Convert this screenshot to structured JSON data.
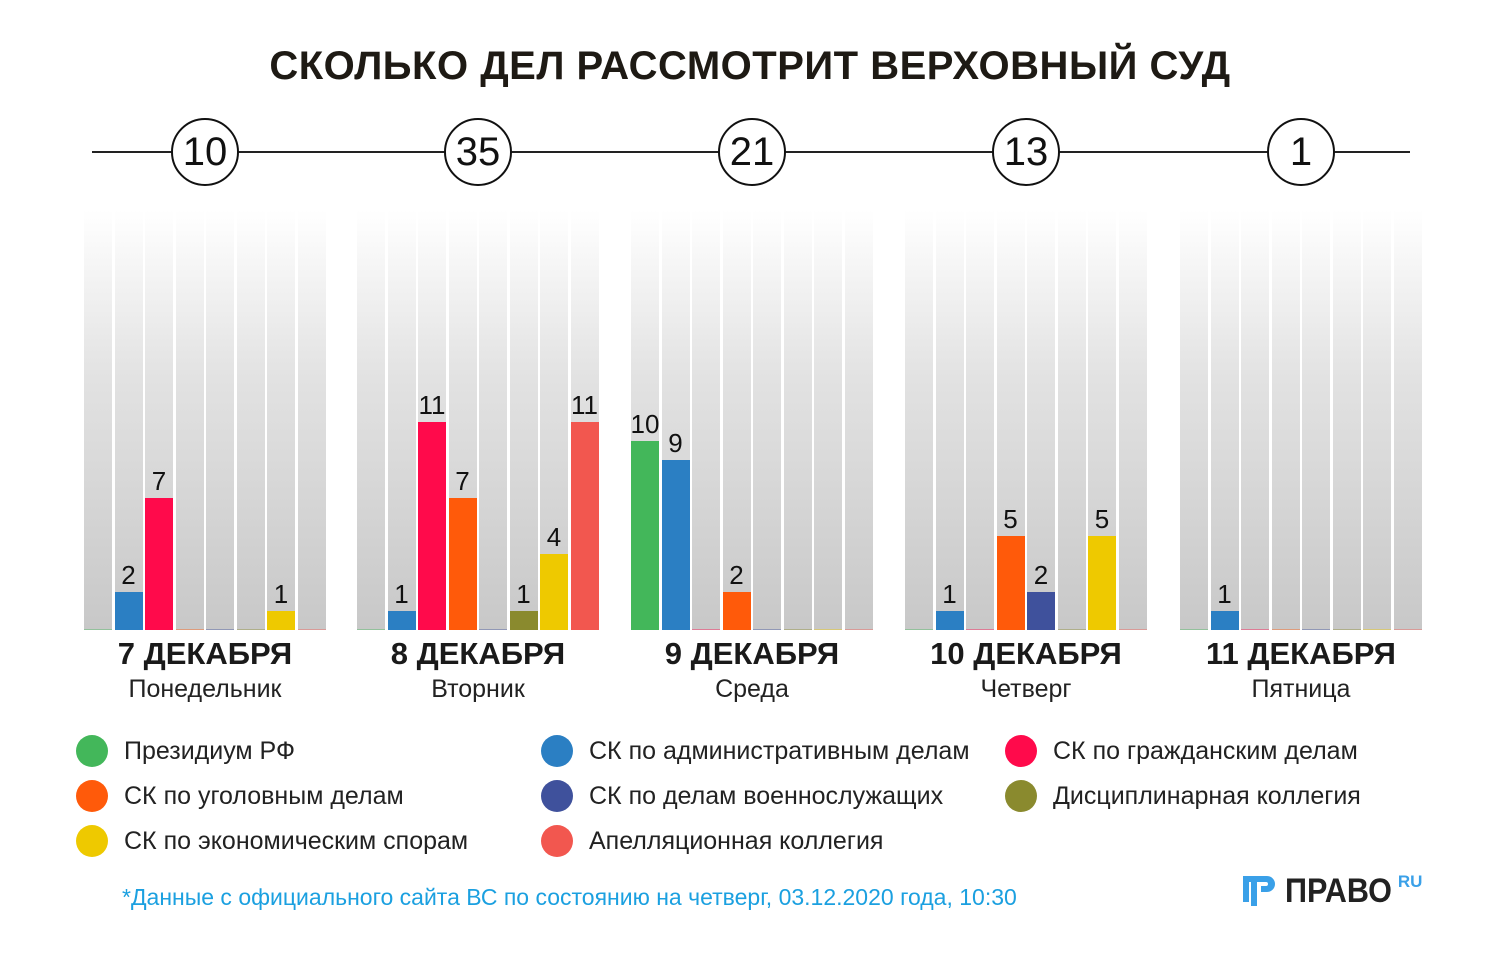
{
  "title": "СКОЛЬКО ДЕЛ РАССМОТРИТ ВЕРХОВНЫЙ СУД",
  "chart_data": {
    "type": "bar",
    "title": "СКОЛЬКО ДЕЛ РАССМОТРИТ ВЕРХОВНЫЙ СУД",
    "ylim": [
      0,
      11
    ],
    "series": [
      {
        "name": "Президиум РФ",
        "color": "#43b75a",
        "values": [
          0,
          0,
          10,
          0,
          0
        ]
      },
      {
        "name": "СК по административным делам",
        "color": "#2b7fc3",
        "values": [
          2,
          1,
          9,
          1,
          1
        ]
      },
      {
        "name": "СК по гражданским делам",
        "color": "#ff0a4b",
        "values": [
          7,
          11,
          0,
          0,
          0
        ]
      },
      {
        "name": "СК по уголовным делам",
        "color": "#ff5a0a",
        "values": [
          0,
          7,
          2,
          5,
          0
        ]
      },
      {
        "name": "СК по делам военнослужащих",
        "color": "#3f519c",
        "values": [
          0,
          0,
          0,
          2,
          0
        ]
      },
      {
        "name": "Дисциплинарная коллегия",
        "color": "#8a8a2e",
        "values": [
          0,
          1,
          0,
          0,
          0
        ]
      },
      {
        "name": "СК по экономическим спорам",
        "color": "#eec900",
        "values": [
          1,
          4,
          0,
          5,
          0
        ]
      },
      {
        "name": "Апелляционная коллегия",
        "color": "#f2574f",
        "values": [
          0,
          11,
          0,
          0,
          0
        ]
      }
    ],
    "days": [
      {
        "total": "10",
        "date": "7 ДЕКАБРЯ",
        "weekday": "Понедельник"
      },
      {
        "total": "35",
        "date": "8 ДЕКАБРЯ",
        "weekday": "Вторник"
      },
      {
        "total": "21",
        "date": "9 ДЕКАБРЯ",
        "weekday": "Среда"
      },
      {
        "total": "13",
        "date": "10 ДЕКАБРЯ",
        "weekday": "Четверг"
      },
      {
        "total": "1",
        "date": "11 ДЕКАБРЯ",
        "weekday": "Пятница"
      }
    ],
    "legend_order": [
      0,
      3,
      6,
      1,
      4,
      7,
      2,
      5
    ]
  },
  "footnote": "*Данные с официального сайта ВС по состоянию на четверг, 03.12.2020 года, 10:30",
  "logo": {
    "text": "ПРАВО",
    "suffix": "RU"
  }
}
